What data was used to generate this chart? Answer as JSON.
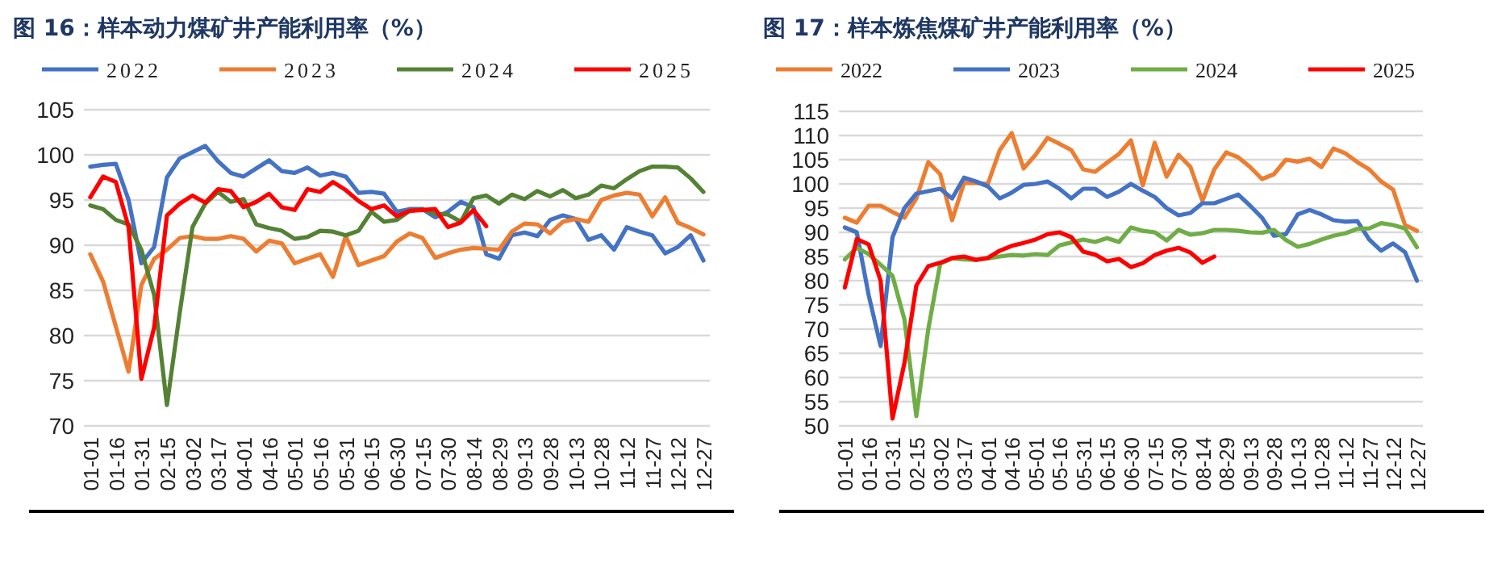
{
  "chart_data": [
    {
      "type": "line",
      "title": "图 16：样本动力煤矿井产能利用率（%）",
      "categories": [
        "01-01",
        null,
        "01-16",
        null,
        "01-31",
        null,
        "02-15",
        null,
        "03-02",
        null,
        "03-17",
        null,
        "04-01",
        null,
        "04-16",
        null,
        "05-01",
        null,
        "05-16",
        null,
        "05-31",
        null,
        "06-15",
        null,
        "06-30",
        null,
        "07-15",
        null,
        "07-30",
        null,
        "08-14",
        null,
        "08-29",
        null,
        "09-13",
        null,
        "09-28",
        null,
        "10-13",
        null,
        "10-28",
        null,
        "11-12",
        null,
        "11-27",
        null,
        "12-12",
        null,
        "12-27"
      ],
      "series": [
        {
          "name": "2022",
          "color": "#4472c4",
          "values": [
            98.7,
            98.9,
            99,
            95,
            88,
            89.8,
            97.5,
            99.6,
            100.3,
            101,
            99.3,
            98,
            97.6,
            98.5,
            99.4,
            98.2,
            98,
            98.6,
            97.7,
            98,
            97.6,
            95.8,
            95.9,
            95.7,
            93.7,
            94,
            94,
            93.1,
            93.7,
            94.8,
            94.2,
            89,
            88.5,
            91.1,
            91.4,
            91,
            92.8,
            93.3,
            92.9,
            90.6,
            91.1,
            89.5,
            92,
            91.5,
            91.1,
            89.1,
            89.8,
            91.1,
            88.3
          ]
        },
        {
          "name": "2023",
          "color": "#ed7d31",
          "values": [
            89,
            86,
            81,
            76,
            85.6,
            88.5,
            89.5,
            90.8,
            91,
            90.7,
            90.7,
            91,
            90.7,
            89.3,
            90.5,
            90.2,
            88,
            88.5,
            89,
            86.5,
            91,
            87.8,
            88.3,
            88.8,
            90.4,
            91.3,
            90.8,
            88.6,
            89.1,
            89.5,
            89.7,
            89.6,
            89.5,
            91.5,
            92.4,
            92.3,
            91.3,
            92.6,
            92.9,
            92.6,
            95,
            95.5,
            95.8,
            95.6,
            93.2,
            95.3,
            92.5,
            91.9,
            91.2
          ]
        },
        {
          "name": "2024",
          "color": "#548235",
          "values": [
            94.4,
            94,
            92.8,
            92.3,
            89.5,
            84.5,
            72.3,
            82.5,
            92,
            94.6,
            95.9,
            94.8,
            95.1,
            92.3,
            91.9,
            91.6,
            90.7,
            90.9,
            91.6,
            91.5,
            91.1,
            91.6,
            93.7,
            92.6,
            92.8,
            93.8,
            94,
            93.5,
            93.4,
            92.6,
            95.2,
            95.5,
            94.6,
            95.6,
            95.1,
            96,
            95.4,
            96.1,
            95.2,
            95.6,
            96.6,
            96.3,
            97.3,
            98.2,
            98.7,
            98.7,
            98.6,
            97.4,
            95.9
          ]
        },
        {
          "name": "2025",
          "color": "#ff0000",
          "values": [
            95.3,
            97.6,
            97,
            92,
            75.2,
            80.9,
            93.3,
            94.6,
            95.5,
            94.7,
            96.2,
            96,
            94.2,
            94.8,
            95.7,
            94.2,
            93.9,
            96.2,
            95.9,
            97,
            96.1,
            94.9,
            94,
            94.4,
            93.2,
            93.8,
            93.9,
            94,
            92,
            92.5,
            93.9,
            92.1,
            null,
            null,
            null,
            null,
            null,
            null,
            null,
            null,
            null,
            null,
            null,
            null,
            null,
            null,
            null,
            null,
            null
          ]
        }
      ],
      "ylim": [
        70,
        105
      ],
      "yticks": [
        70,
        75,
        80,
        85,
        90,
        95,
        100,
        105
      ],
      "grid": "y",
      "legend": "top"
    },
    {
      "type": "line",
      "title": "图 17：样本炼焦煤矿井产能利用率（%）",
      "categories": [
        "01-01",
        null,
        "01-16",
        null,
        "01-31",
        null,
        "02-15",
        null,
        "03-02",
        null,
        "03-17",
        null,
        "04-01",
        null,
        "04-16",
        null,
        "05-01",
        null,
        "05-16",
        null,
        "05-31",
        null,
        "06-15",
        null,
        "06-30",
        null,
        "07-15",
        null,
        "07-30",
        null,
        "08-14",
        null,
        "08-29",
        null,
        "09-13",
        null,
        "09-28",
        null,
        "10-13",
        null,
        "10-28",
        null,
        "11-12",
        null,
        "11-27",
        null,
        "12-12",
        null,
        "12-27"
      ],
      "series": [
        {
          "name": "2022",
          "color": "#ed7d31",
          "values": [
            93,
            92,
            95.5,
            95.5,
            94.2,
            93,
            97,
            104.5,
            102,
            92.5,
            100.2,
            100.2,
            100,
            107,
            110.5,
            103.2,
            106,
            109.5,
            108.3,
            107,
            103,
            102.5,
            104.4,
            106.2,
            109,
            99.7,
            108.5,
            101.5,
            106,
            103.5,
            96.5,
            103,
            106.5,
            105.5,
            103.5,
            101,
            102,
            105,
            104.6,
            105.2,
            103.5,
            107.3,
            106.3,
            104.5,
            103,
            100.5,
            98.8,
            91.5,
            90.3
          ]
        },
        {
          "name": "2023",
          "color": "#4472c4",
          "values": [
            91,
            90,
            77,
            66.5,
            89,
            95,
            98,
            98.5,
            99,
            97,
            101.3,
            100.5,
            99.5,
            97,
            98.2,
            99.8,
            100,
            100.5,
            99,
            97,
            99,
            99,
            97.3,
            98.4,
            100,
            98.6,
            97.3,
            95,
            93.5,
            94,
            96,
            96,
            96.9,
            97.8,
            95.5,
            93,
            89.3,
            89.6,
            93.7,
            94.6,
            93.7,
            92.5,
            92.2,
            92.3,
            88.5,
            86.2,
            87.7,
            85.9,
            80
          ]
        },
        {
          "name": "2024",
          "color": "#70ad47",
          "values": [
            84.4,
            86.8,
            85.5,
            83.3,
            81,
            72,
            52,
            70,
            83.5,
            84.6,
            84.4,
            84.3,
            84.6,
            85,
            85.3,
            85.2,
            85.5,
            85.3,
            87.3,
            87.9,
            88.5,
            88,
            88.8,
            88,
            91,
            90.3,
            90,
            88.3,
            90.5,
            89.5,
            89.8,
            90.5,
            90.5,
            90.3,
            90,
            89.9,
            90.5,
            88.4,
            87,
            87.6,
            88.5,
            89.3,
            89.8,
            90.7,
            90.8,
            91.9,
            91.5,
            90.8,
            86.9
          ]
        },
        {
          "name": "2025",
          "color": "#ff0000",
          "values": [
            78.6,
            88.6,
            87.5,
            80,
            51.5,
            63,
            79,
            83,
            83.7,
            84.7,
            85,
            84.3,
            84.7,
            86.2,
            87.2,
            87.8,
            88.5,
            89.6,
            90,
            89,
            86,
            85.4,
            84,
            84.5,
            82.8,
            83.6,
            85.3,
            86.2,
            86.8,
            85.8,
            83.7,
            85,
            null,
            null,
            null,
            null,
            null,
            null,
            null,
            null,
            null,
            null,
            null,
            null,
            null,
            null,
            null,
            null,
            null
          ]
        }
      ],
      "ylim": [
        50,
        115
      ],
      "yticks": [
        50,
        55,
        60,
        65,
        70,
        75,
        80,
        85,
        90,
        95,
        100,
        105,
        110,
        115
      ],
      "grid": "y",
      "legend": "top"
    }
  ]
}
